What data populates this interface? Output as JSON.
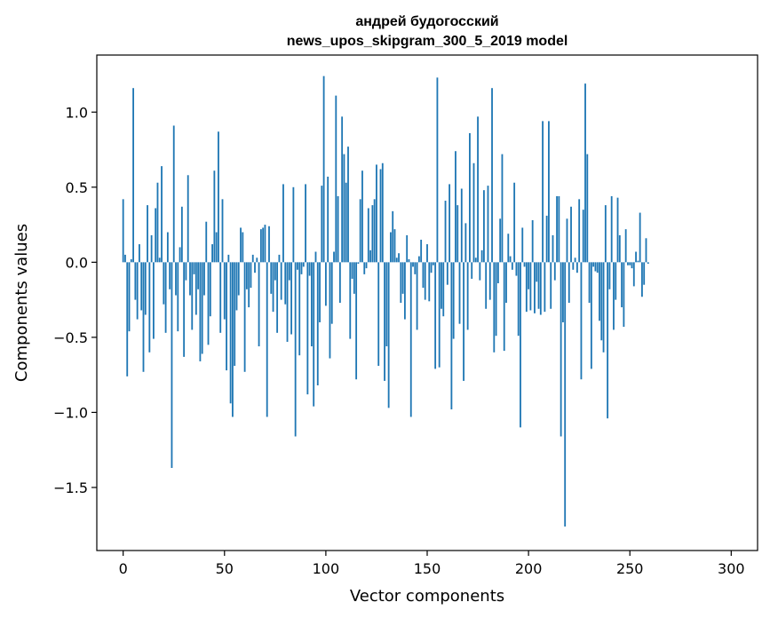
{
  "chart_data": {
    "type": "bar",
    "title_line1": "андрей будогосский",
    "title_line2": "news_upos_skipgram_300_5_2019 model",
    "xlabel": "Vector components",
    "ylabel": "Components values",
    "xlim": [
      -13,
      313
    ],
    "ylim": [
      -1.92,
      1.38
    ],
    "xticks": [
      0,
      50,
      100,
      150,
      200,
      250,
      300
    ],
    "xtick_labels": [
      "0",
      "50",
      "100",
      "150",
      "200",
      "250",
      "300"
    ],
    "yticks": [
      1.0,
      0.5,
      0.0,
      -0.5,
      -1.0,
      -1.5
    ],
    "ytick_labels": [
      "1.0",
      "0.5",
      "0.0",
      "−0.5",
      "−1.0",
      "−1.5"
    ],
    "grid": false,
    "legend": "none",
    "bar_color": "#1f77b4",
    "values": [
      0.42,
      0.05,
      -0.76,
      -0.46,
      0.02,
      1.16,
      -0.25,
      -0.38,
      0.12,
      -0.32,
      -0.73,
      -0.35,
      0.38,
      -0.6,
      0.18,
      -0.51,
      0.36,
      0.53,
      0.03,
      0.64,
      -0.28,
      -0.47,
      0.2,
      -0.18,
      -1.37,
      0.91,
      -0.22,
      -0.46,
      0.1,
      0.37,
      -0.63,
      -0.12,
      0.58,
      -0.22,
      -0.45,
      -0.08,
      -0.35,
      -0.18,
      -0.66,
      -0.61,
      -0.22,
      0.27,
      -0.55,
      -0.36,
      0.12,
      0.61,
      0.2,
      0.87,
      -0.47,
      0.42,
      -0.38,
      -0.72,
      0.05,
      -0.94,
      -1.03,
      -0.69,
      -0.32,
      -0.22,
      0.23,
      0.2,
      -0.73,
      -0.18,
      -0.3,
      -0.17,
      0.05,
      -0.07,
      0.03,
      -0.56,
      0.22,
      0.23,
      0.25,
      -1.03,
      0.24,
      -0.21,
      -0.33,
      -0.12,
      -0.47,
      0.05,
      -0.25,
      0.52,
      -0.28,
      -0.53,
      -0.12,
      -0.48,
      0.5,
      -1.16,
      -0.05,
      -0.62,
      -0.08,
      -0.03,
      0.52,
      -0.88,
      -0.09,
      -0.56,
      -0.96,
      0.07,
      -0.82,
      -0.4,
      0.51,
      1.24,
      -0.29,
      0.57,
      -0.64,
      -0.41,
      0.07,
      1.11,
      0.44,
      -0.27,
      0.97,
      0.72,
      0.53,
      0.77,
      -0.51,
      -0.11,
      -0.21,
      -0.78,
      -0.01,
      0.42,
      0.61,
      -0.08,
      -0.04,
      0.36,
      0.08,
      0.38,
      0.42,
      0.65,
      -0.69,
      0.62,
      0.66,
      -0.79,
      -0.56,
      -0.97,
      0.2,
      0.34,
      0.22,
      0.03,
      0.06,
      -0.27,
      -0.21,
      -0.38,
      0.18,
      0.02,
      -1.03,
      -0.03,
      -0.08,
      -0.45,
      0.04,
      0.15,
      -0.17,
      -0.25,
      0.12,
      -0.26,
      -0.07,
      -0.02,
      -0.71,
      1.23,
      -0.7,
      -0.31,
      -0.36,
      0.41,
      -0.15,
      0.52,
      -0.98,
      -0.51,
      0.74,
      0.38,
      -0.41,
      0.49,
      -0.79,
      0.26,
      -0.45,
      0.86,
      -0.11,
      0.66,
      0.03,
      0.97,
      -0.12,
      0.08,
      0.48,
      -0.31,
      0.51,
      -0.25,
      1.16,
      -0.6,
      -0.49,
      -0.14,
      0.29,
      0.72,
      -0.59,
      -0.27,
      0.19,
      0.04,
      -0.05,
      0.53,
      -0.09,
      -0.49,
      -1.1,
      0.23,
      -0.03,
      -0.33,
      -0.18,
      -0.32,
      0.28,
      -0.34,
      -0.13,
      -0.31,
      -0.35,
      0.94,
      -0.33,
      0.31,
      0.94,
      -0.31,
      0.18,
      -0.12,
      0.44,
      0.44,
      -1.16,
      -0.4,
      -1.76,
      0.29,
      -0.27,
      0.37,
      -0.05,
      0.03,
      -0.07,
      0.42,
      -0.78,
      0.35,
      1.19,
      0.72,
      -0.27,
      -0.71,
      -0.03,
      -0.06,
      -0.07,
      -0.39,
      -0.52,
      -0.6,
      0.38,
      -1.04,
      -0.18,
      0.44,
      -0.45,
      -0.25,
      0.43,
      0.18,
      -0.3,
      -0.43,
      0.22,
      -0.02,
      -0.02,
      -0.04,
      -0.16,
      0.07,
      0.01,
      0.33,
      -0.23,
      -0.15,
      0.16,
      -0.01
    ]
  }
}
